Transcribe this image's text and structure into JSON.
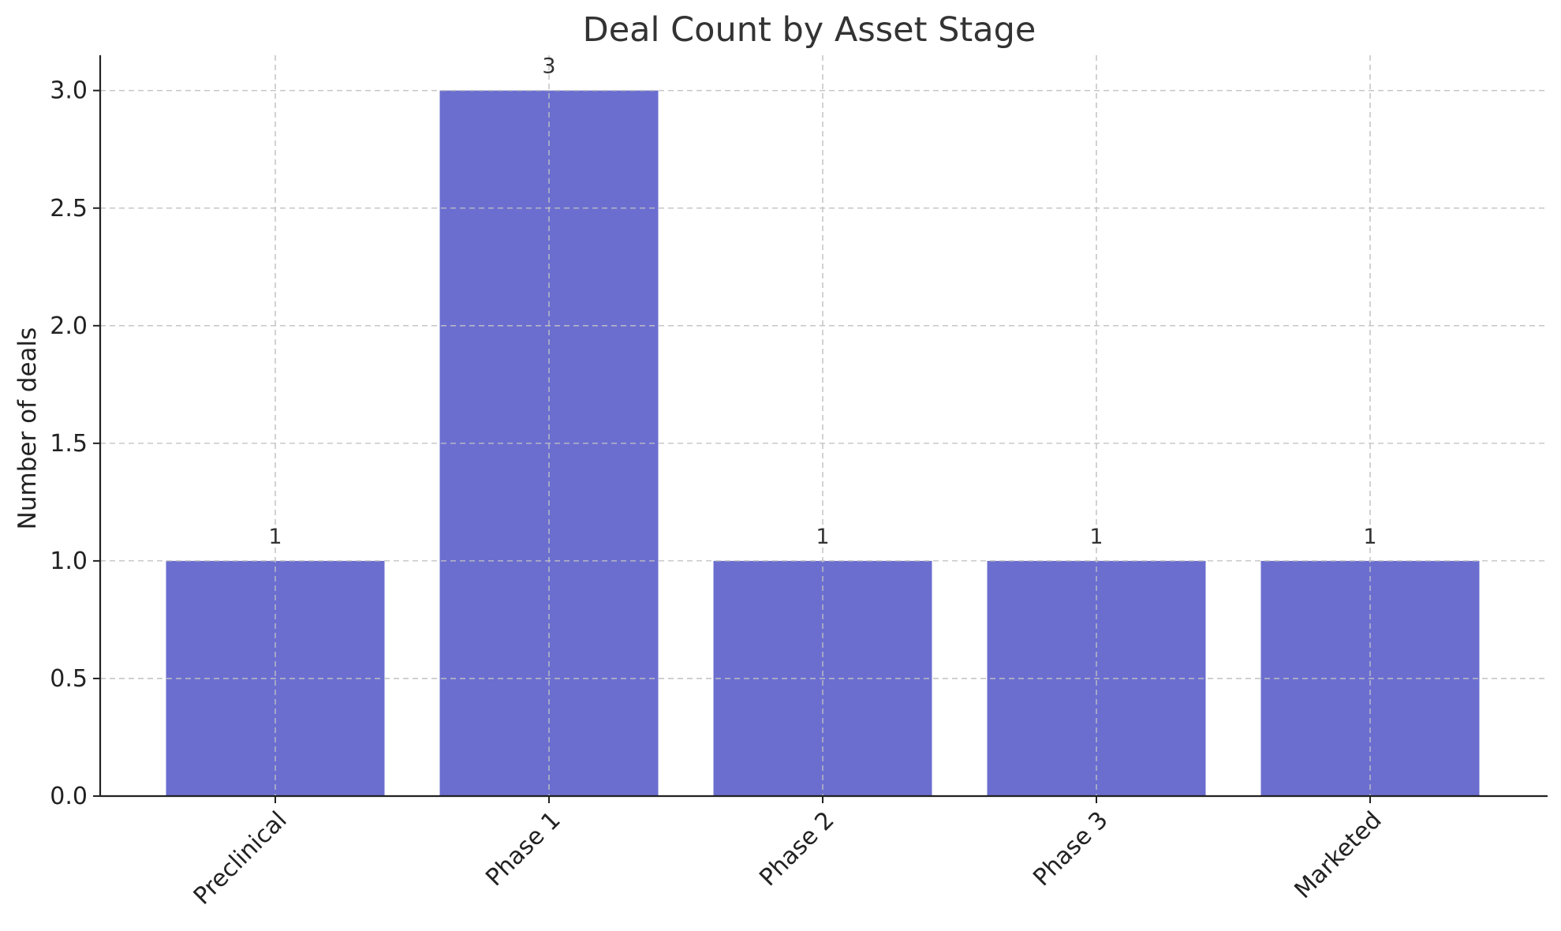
{
  "chart_data": {
    "type": "bar",
    "title": "Deal Count by Asset Stage",
    "xlabel": "",
    "ylabel": "Number of deals",
    "categories": [
      "Preclinical",
      "Phase 1",
      "Phase 2",
      "Phase 3",
      "Marketed"
    ],
    "values": [
      1,
      3,
      1,
      1,
      1
    ],
    "data_labels": [
      "1",
      "3",
      "1",
      "1",
      "1"
    ],
    "ylim": [
      0,
      3.15
    ],
    "yticks": [
      0.0,
      0.5,
      1.0,
      1.5,
      2.0,
      2.5,
      3.0
    ],
    "ytick_labels": [
      "0.0",
      "0.5",
      "1.0",
      "1.5",
      "2.0",
      "2.5",
      "3.0"
    ],
    "grid": true,
    "grid_style": "dashed",
    "bar_color": "#6b6ecf",
    "legend": "none"
  }
}
